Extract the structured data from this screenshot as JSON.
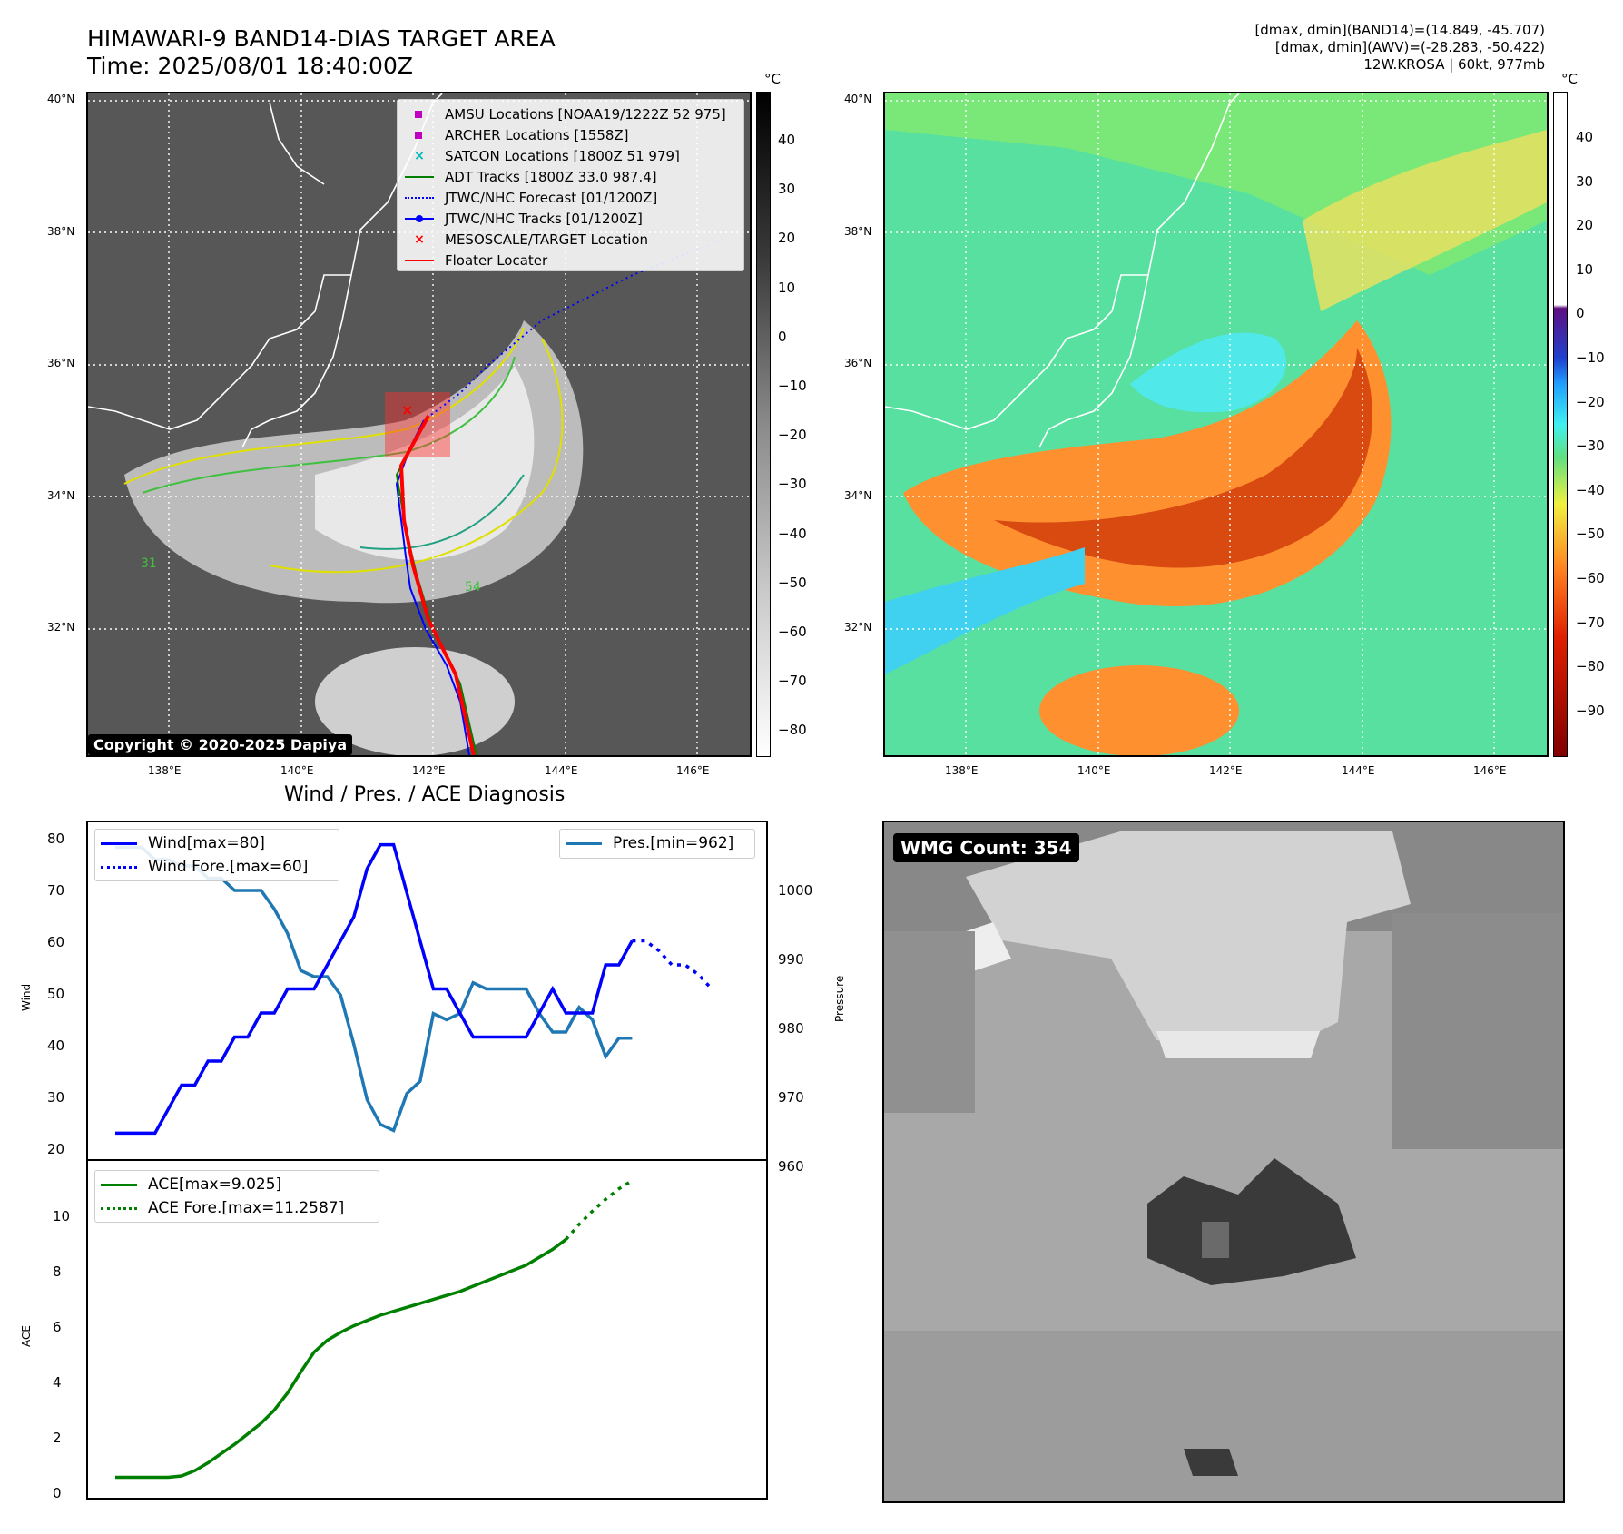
{
  "header": {
    "title_line1": "HIMAWARI-9 BAND14-DIAS TARGET AREA",
    "title_line2": "Time: 2025/08/01 18:40:00Z",
    "info_line1": "[dmax, dmin](BAND14)=(14.849, -45.707)",
    "info_line2": "[dmax, dmin](AWV)=(-28.283, -50.422)",
    "info_line3": "12W.KROSA | 60kt, 977mb"
  },
  "map_axes": {
    "lat_labels": [
      "40°N",
      "38°N",
      "36°N",
      "34°N",
      "32°N"
    ],
    "lon_labels": [
      "138°E",
      "140°E",
      "142°E",
      "144°E",
      "146°E"
    ]
  },
  "ir_panel": {
    "copyright": "Copyright © 2020-2025 Dapiya",
    "colorbar_unit": "°C",
    "colorbar_ticks": [
      "40",
      "30",
      "20",
      "10",
      "0",
      "−10",
      "−20",
      "−30",
      "−40",
      "−50",
      "−60",
      "−70",
      "−80"
    ],
    "contour_labels": [
      "31",
      "54"
    ],
    "legend": [
      {
        "label": "AMSU Locations [NOAA19/1222Z 52 975]",
        "symbol": "square",
        "color": "#c000c0"
      },
      {
        "label": "ARCHER Locations [1558Z]",
        "symbol": "square",
        "color": "#c000c0"
      },
      {
        "label": "SATCON Locations [1800Z 51 979]",
        "symbol": "x",
        "color": "#00b8b8"
      },
      {
        "label": "ADT Tracks [1800Z 33.0 987.4]",
        "symbol": "line",
        "color": "#008000"
      },
      {
        "label": "JTWC/NHC Forecast [01/1200Z]",
        "symbol": "dotted",
        "color": "#0000ff"
      },
      {
        "label": "JTWC/NHC Tracks [01/1200Z]",
        "symbol": "line-dot",
        "color": "#0000ff"
      },
      {
        "label": "MESOSCALE/TARGET Location",
        "symbol": "x",
        "color": "#ff0000"
      },
      {
        "label": "Floater Locater",
        "symbol": "line",
        "color": "#ff0000"
      }
    ]
  },
  "awv_panel": {
    "colorbar_unit": "°C",
    "colorbar_ticks": [
      "40",
      "30",
      "20",
      "10",
      "0",
      "−10",
      "−20",
      "−30",
      "−40",
      "−50",
      "−60",
      "−70",
      "−80",
      "−90"
    ]
  },
  "wmg_panel": {
    "label": "WMG Count: 354"
  },
  "diagnosis": {
    "title": "Wind / Pres. / ACE Diagnosis",
    "wind_ylabel": "Wind",
    "pres_ylabel": "Pressure",
    "ace_ylabel": "ACE",
    "wind_ticks": [
      "80",
      "70",
      "60",
      "50",
      "40",
      "30",
      "20"
    ],
    "pres_ticks": [
      "1000",
      "990",
      "980",
      "970",
      "960"
    ],
    "ace_ticks": [
      "10",
      "8",
      "6",
      "4",
      "2",
      "0"
    ],
    "legend_wind": "Wind[max=80]",
    "legend_wind_fore": "Wind Fore.[max=60]",
    "legend_pres": "Pres.[min=962]",
    "legend_ace": "ACE[max=9.025]",
    "legend_ace_fore": "ACE Fore.[max=11.2587]"
  },
  "chart_data": {
    "type": "line",
    "wind": {
      "values": [
        20,
        20,
        20,
        20,
        25,
        30,
        30,
        35,
        35,
        40,
        40,
        45,
        45,
        50,
        50,
        50,
        55,
        60,
        65,
        75,
        80,
        80,
        70,
        60,
        50,
        50,
        45,
        40,
        40,
        40,
        40,
        40,
        45,
        50,
        45,
        45,
        45,
        55,
        55,
        60
      ],
      "ylim": [
        18,
        82
      ]
    },
    "wind_forecast": {
      "values": [
        60,
        60,
        58,
        55,
        55,
        53,
        50
      ],
      "start_index": 39
    },
    "pressure": {
      "values": [
        1008,
        1008,
        1008,
        1006,
        1006,
        1005,
        1005,
        1003,
        1003,
        1001,
        1001,
        1001,
        998,
        994,
        988,
        987,
        987,
        984,
        976,
        967,
        963,
        962,
        968,
        970,
        981,
        980,
        981,
        986,
        985,
        985,
        985,
        985,
        981,
        978,
        978,
        982,
        980,
        974,
        977,
        977
      ],
      "ylim": [
        960,
        1010
      ]
    },
    "ace": {
      "values": [
        0,
        0,
        0,
        0,
        0,
        0.05,
        0.25,
        0.55,
        0.9,
        1.25,
        1.65,
        2.05,
        2.55,
        3.2,
        4.0,
        4.75,
        5.2,
        5.5,
        5.75,
        5.95,
        6.15,
        6.3,
        6.45,
        6.6,
        6.75,
        6.9,
        7.05,
        7.25,
        7.45,
        7.65,
        7.85,
        8.05,
        8.35,
        8.65,
        9.025
      ],
      "ylim": [
        -0.5,
        11.8
      ]
    },
    "ace_forecast": {
      "values": [
        9.025,
        9.6,
        10.1,
        10.55,
        10.95,
        11.2587
      ],
      "start_index": 34
    }
  }
}
